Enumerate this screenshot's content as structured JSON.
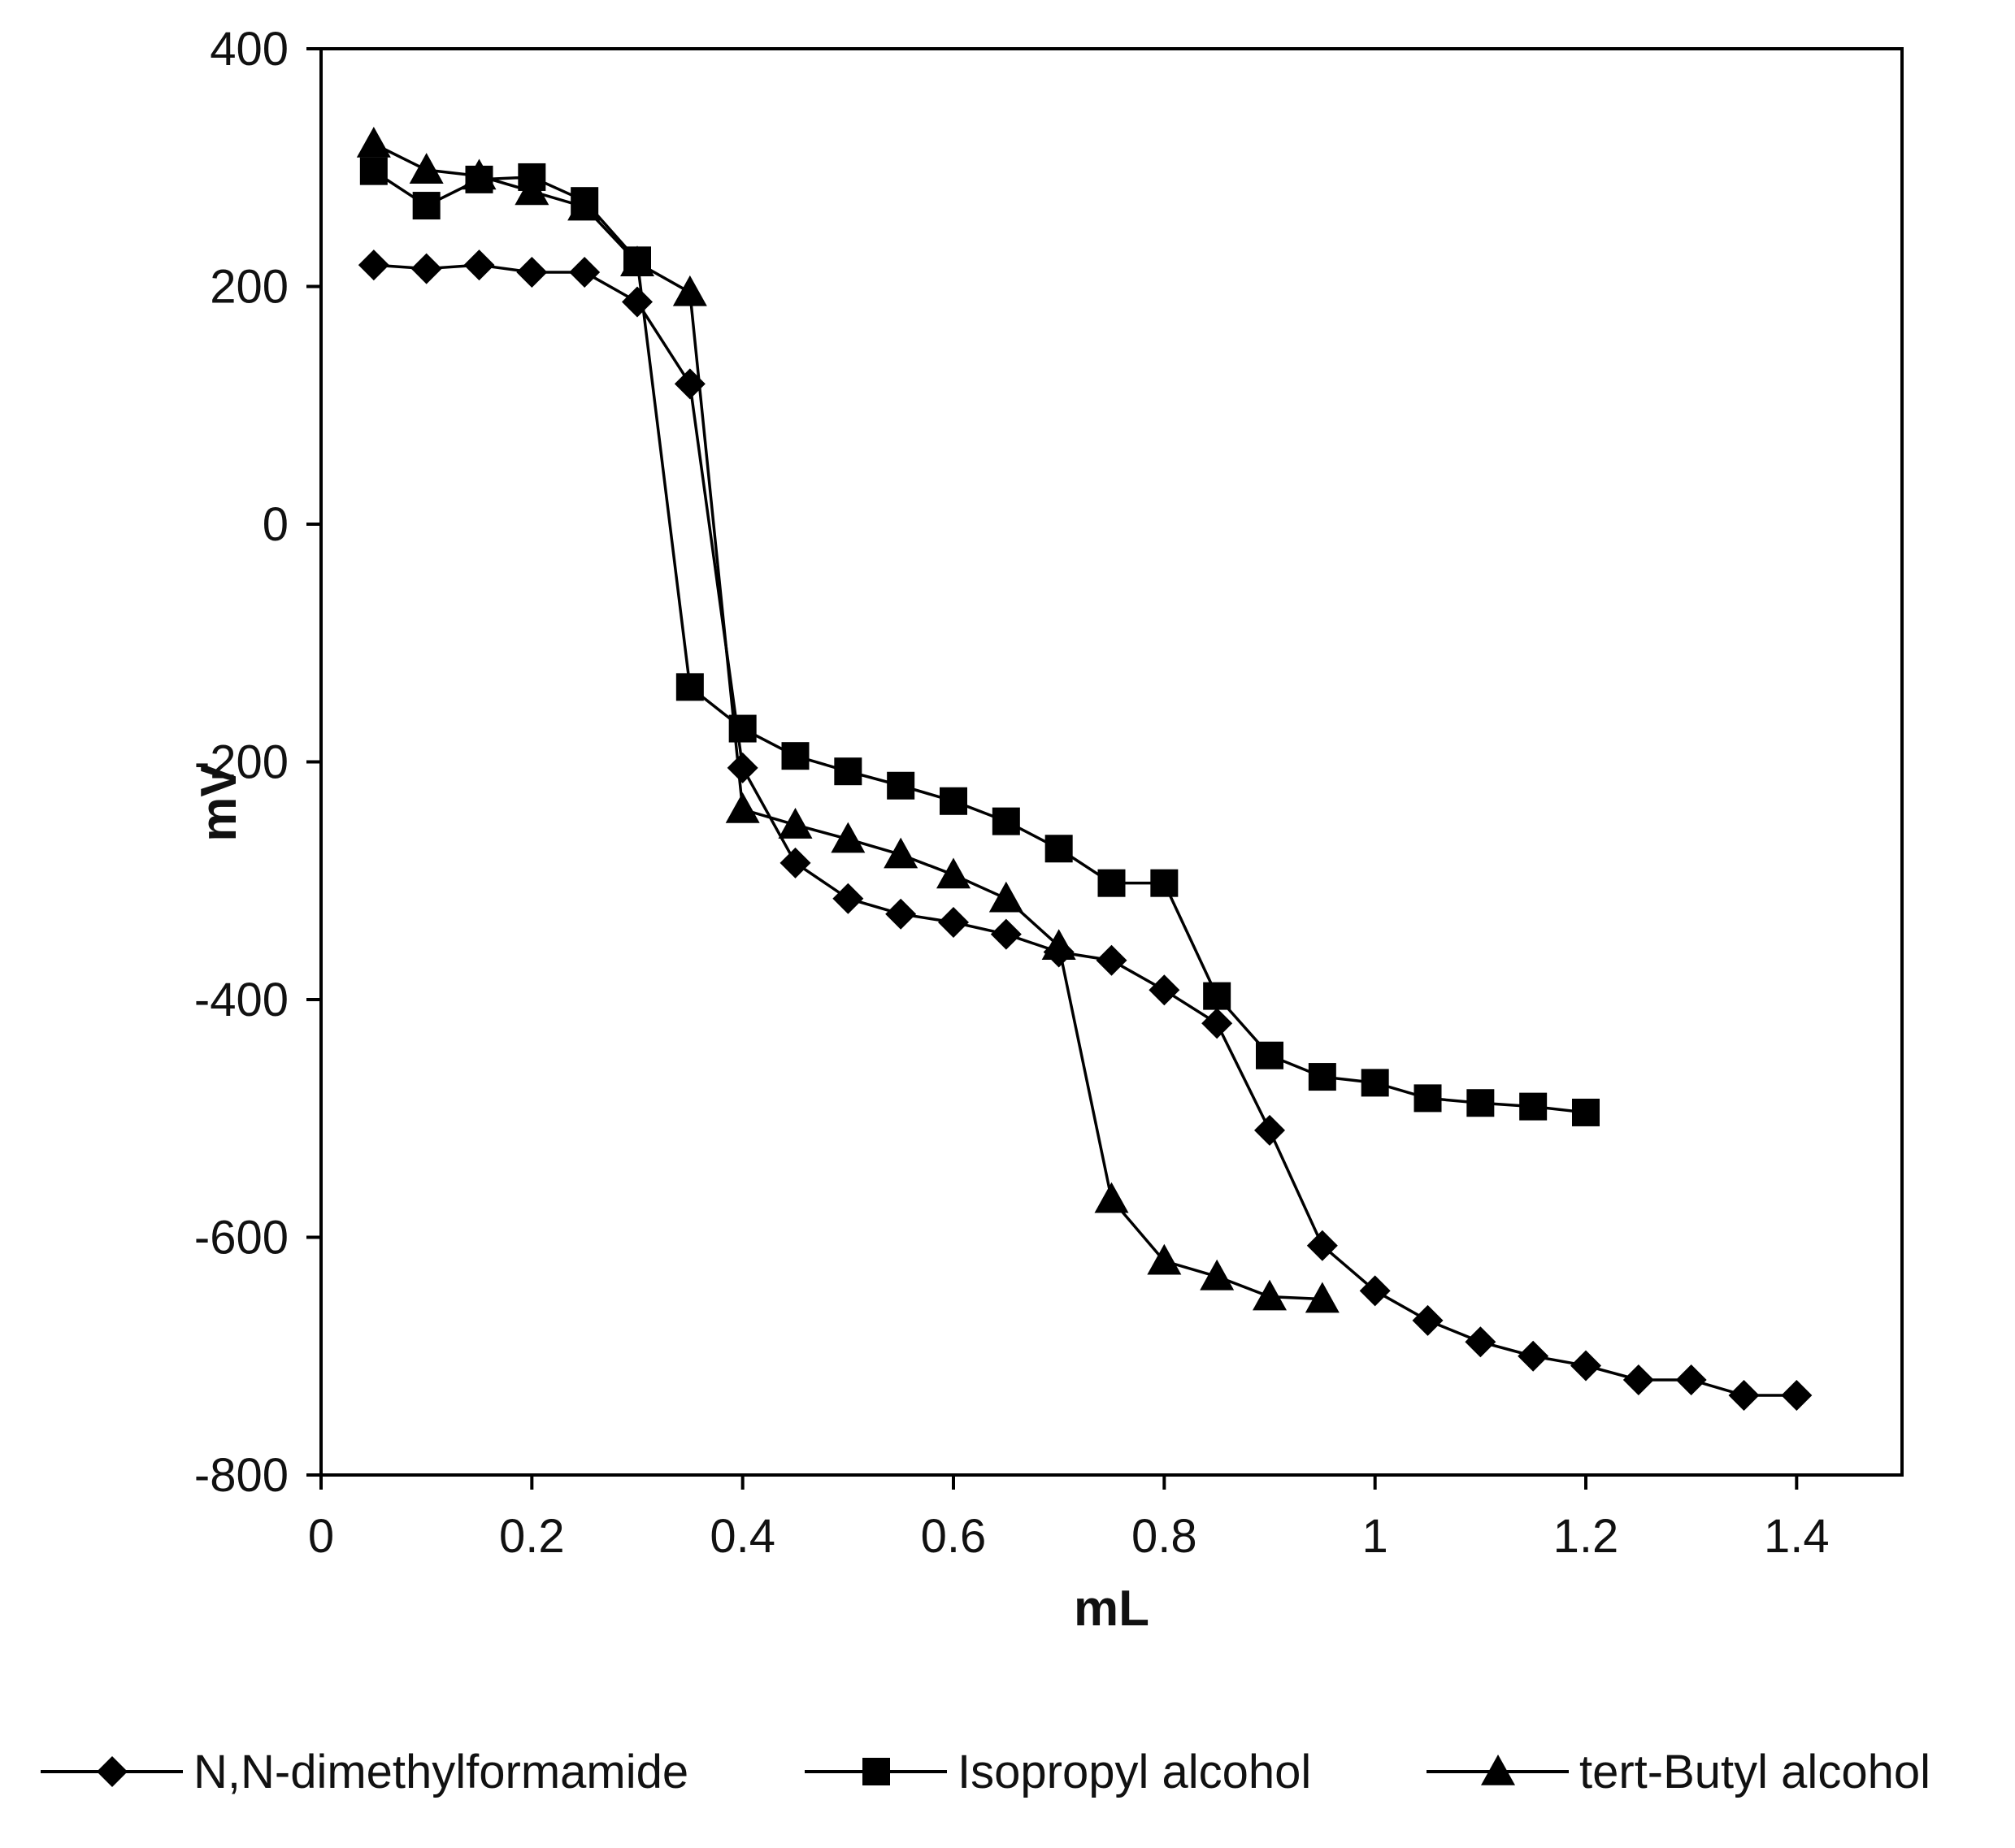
{
  "chart_data": {
    "type": "line",
    "title": "",
    "xlabel": "mL",
    "ylabel": "mV",
    "xlim": [
      0,
      1.5
    ],
    "ylim": [
      -800,
      400
    ],
    "xticks": [
      0,
      0.2,
      0.4,
      0.6,
      0.8,
      1,
      1.2,
      1.4
    ],
    "xtick_labels": [
      "0",
      "0.2",
      "0.4",
      "0.6",
      "0.8",
      "1",
      "1.2",
      "1.4"
    ],
    "yticks": [
      400,
      200,
      0,
      -200,
      -400,
      -600,
      -800
    ],
    "ytick_labels": [
      "400",
      "200",
      "0",
      "-200",
      "-400",
      "-600",
      "-800"
    ],
    "grid": false,
    "legend_position": "bottom",
    "series": [
      {
        "name": "N,N-dimethylformamide",
        "marker": "diamond",
        "color": "#000000",
        "x": [
          0.05,
          0.1,
          0.15,
          0.2,
          0.25,
          0.3,
          0.35,
          0.4,
          0.45,
          0.5,
          0.55,
          0.6,
          0.65,
          0.7,
          0.75,
          0.8,
          0.85,
          0.9,
          0.95,
          1.0,
          1.05,
          1.1,
          1.15,
          1.2,
          1.25,
          1.3,
          1.35,
          1.4
        ],
        "y": [
          218,
          215,
          218,
          212,
          212,
          187,
          118,
          -205,
          -285,
          -315,
          -328,
          -335,
          -345,
          -360,
          -367,
          -392,
          -420,
          -510,
          -607,
          -645,
          -670,
          -688,
          -700,
          -708,
          -720,
          -720,
          -733,
          -733
        ]
      },
      {
        "name": "Isopropyl alcohol",
        "marker": "square",
        "color": "#000000",
        "x": [
          0.05,
          0.1,
          0.15,
          0.2,
          0.25,
          0.3,
          0.35,
          0.4,
          0.45,
          0.5,
          0.55,
          0.6,
          0.65,
          0.7,
          0.75,
          0.8,
          0.85,
          0.9,
          0.95,
          1.0,
          1.05,
          1.1,
          1.15,
          1.2
        ],
        "y": [
          297,
          268,
          290,
          292,
          272,
          222,
          -137,
          -172,
          -195,
          -208,
          -220,
          -233,
          -250,
          -273,
          -302,
          -302,
          -397,
          -447,
          -465,
          -470,
          -483,
          -487,
          -490,
          -495
        ]
      },
      {
        "name": "tert-Butyl alcohol",
        "marker": "triangle",
        "color": "#000000",
        "x": [
          0.05,
          0.1,
          0.15,
          0.2,
          0.25,
          0.3,
          0.35,
          0.4,
          0.45,
          0.5,
          0.55,
          0.6,
          0.65,
          0.7,
          0.75,
          0.8,
          0.85,
          0.9,
          0.95
        ],
        "y": [
          320,
          298,
          293,
          280,
          267,
          220,
          195,
          -240,
          -253,
          -265,
          -278,
          -295,
          -315,
          -355,
          -568,
          -620,
          -633,
          -650,
          -652
        ]
      }
    ]
  }
}
